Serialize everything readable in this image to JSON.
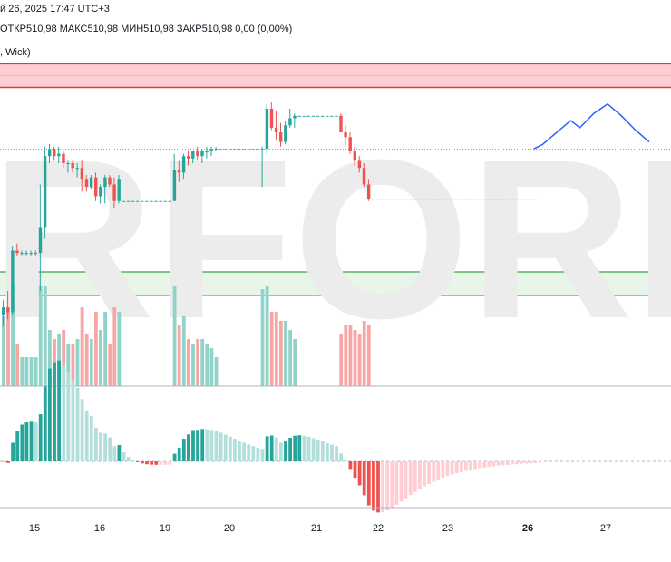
{
  "header": {
    "date_text": "й 26, 2025 17:47 UTC+3",
    "ohlc_text": "ОТКР510,98  МАКС510,98  МИН510,98  ЗАКР510,98  0,00 (0,00%)",
    "indicator_text": ", Wick)"
  },
  "watermark": "RFOREX.",
  "colors": {
    "up": "#26a69a",
    "down": "#ef5350",
    "vol_up": "#8fd3c9",
    "vol_down": "#f7a6a4",
    "osc_up_light": "#b2dfdb",
    "osc_down_light": "#ffcdd2",
    "forecast": "#2962ff",
    "resistance_fill": "#ffcdd2",
    "resistance_line": "#e53935",
    "support_fill": "#e8f5e9",
    "support_line": "#43a047"
  },
  "chart_data": {
    "type": "candlestick",
    "x_labels": [
      "15",
      "16",
      "19",
      "20",
      "21",
      "22",
      "23",
      "26",
      "27"
    ],
    "bold_labels": [
      "26"
    ],
    "candles": [
      [
        460,
        466,
        455,
        463
      ],
      [
        463,
        470,
        458,
        461
      ],
      [
        461,
        489,
        460,
        487
      ],
      [
        487,
        490,
        485,
        486
      ],
      [
        486,
        487,
        485,
        486
      ],
      [
        486,
        487,
        485,
        486
      ],
      [
        486,
        487,
        485,
        486
      ],
      [
        486,
        487,
        485,
        486
      ],
      [
        486,
        515,
        470,
        497
      ],
      [
        497,
        531,
        492,
        527
      ],
      [
        527,
        532,
        524,
        530
      ],
      [
        530,
        531,
        525,
        527
      ],
      [
        527,
        531,
        524,
        528
      ],
      [
        528,
        530,
        522,
        524
      ],
      [
        524,
        525,
        520,
        524
      ],
      [
        524,
        525,
        520,
        522
      ],
      [
        522,
        524,
        518,
        522
      ],
      [
        522,
        525,
        512,
        517
      ],
      [
        517,
        519,
        512,
        514
      ],
      [
        514,
        519,
        513,
        518
      ],
      [
        518,
        520,
        508,
        510
      ],
      [
        510,
        515,
        507,
        514
      ],
      [
        514,
        519,
        507,
        518
      ],
      [
        518,
        519,
        514,
        515
      ],
      [
        515,
        518,
        505,
        508
      ],
      [
        508,
        519,
        507,
        517
      ],
      [
        508,
        508,
        508,
        508
      ],
      [
        508,
        508,
        508,
        508
      ],
      [
        508,
        508,
        508,
        508
      ],
      [
        508,
        508,
        508,
        508
      ],
      [
        508,
        508,
        508,
        508
      ],
      [
        508,
        508,
        508,
        508
      ],
      [
        508,
        508,
        508,
        508
      ],
      [
        508,
        508,
        508,
        508
      ],
      [
        508,
        508,
        508,
        508
      ],
      [
        508,
        508,
        508,
        508
      ],
      [
        508,
        508,
        508,
        508
      ],
      [
        508,
        528,
        508,
        521
      ],
      [
        521,
        525,
        516,
        520
      ],
      [
        520,
        528,
        517,
        527
      ],
      [
        527,
        529,
        523,
        526
      ],
      [
        526,
        529,
        524,
        529
      ],
      [
        529,
        531,
        525,
        527
      ],
      [
        527,
        530,
        524,
        529
      ],
      [
        529,
        531,
        526,
        529
      ],
      [
        529,
        531,
        527,
        530
      ],
      [
        530,
        531,
        529,
        530
      ],
      [
        530,
        530,
        530,
        530
      ],
      [
        530,
        530,
        530,
        530
      ],
      [
        530,
        530,
        530,
        530
      ],
      [
        530,
        530,
        530,
        530
      ],
      [
        530,
        530,
        530,
        530
      ],
      [
        530,
        530,
        530,
        530
      ],
      [
        530,
        530,
        530,
        530
      ],
      [
        530,
        530,
        530,
        530
      ],
      [
        530,
        530,
        530,
        530
      ],
      [
        530,
        531,
        514,
        530
      ],
      [
        530,
        549,
        528,
        547
      ],
      [
        547,
        550,
        538,
        539
      ],
      [
        539,
        546,
        534,
        537
      ],
      [
        537,
        541,
        531,
        533
      ],
      [
        533,
        542,
        532,
        540
      ],
      [
        540,
        547,
        539,
        543
      ],
      [
        543,
        545,
        539,
        544
      ],
      [
        544,
        544,
        544,
        544
      ],
      [
        544,
        544,
        544,
        544
      ],
      [
        544,
        544,
        544,
        544
      ],
      [
        544,
        544,
        544,
        544
      ],
      [
        544,
        544,
        544,
        544
      ],
      [
        544,
        544,
        544,
        544
      ],
      [
        544,
        544,
        544,
        544
      ],
      [
        544,
        544,
        544,
        544
      ],
      [
        544,
        544,
        544,
        544
      ],
      [
        544,
        545,
        538,
        537
      ],
      [
        537,
        540,
        531,
        535
      ],
      [
        535,
        537,
        528,
        529
      ],
      [
        529,
        531,
        523,
        525
      ],
      [
        525,
        527,
        520,
        522
      ],
      [
        522,
        524,
        514,
        515
      ],
      [
        515,
        517,
        508,
        509
      ],
      [
        509,
        509,
        509,
        509
      ],
      [
        509,
        509,
        509,
        509
      ],
      [
        509,
        509,
        509,
        509
      ],
      [
        509,
        509,
        509,
        509
      ],
      [
        509,
        509,
        509,
        509
      ],
      [
        509,
        509,
        509,
        509
      ],
      [
        509,
        509,
        509,
        509
      ],
      [
        509,
        509,
        509,
        509
      ],
      [
        509,
        509,
        509,
        509
      ],
      [
        509,
        509,
        509,
        509
      ],
      [
        509,
        509,
        509,
        509
      ],
      [
        509,
        509,
        509,
        509
      ],
      [
        509,
        509,
        509,
        509
      ],
      [
        509,
        509,
        509,
        509
      ],
      [
        509,
        509,
        509,
        509
      ],
      [
        509,
        509,
        509,
        509
      ],
      [
        509,
        509,
        509,
        509
      ],
      [
        509,
        509,
        509,
        509
      ],
      [
        509,
        509,
        509,
        509
      ],
      [
        509,
        509,
        509,
        509
      ],
      [
        509,
        509,
        509,
        509
      ],
      [
        509,
        509,
        509,
        509
      ],
      [
        509,
        509,
        509,
        509
      ],
      [
        509,
        509,
        509,
        509
      ],
      [
        509,
        509,
        509,
        509
      ],
      [
        509,
        509,
        509,
        509
      ],
      [
        509,
        509,
        509,
        509
      ],
      [
        509,
        509,
        509,
        509
      ],
      [
        509,
        509,
        509,
        509
      ],
      [
        509,
        509,
        509,
        509
      ],
      [
        509,
        509,
        509,
        509
      ],
      [
        509,
        509,
        509,
        509
      ],
      [
        509,
        509,
        509,
        509
      ],
      [
        509,
        509,
        509,
        509
      ],
      [
        509,
        509,
        509,
        509
      ],
      [
        509,
        509,
        509,
        509
      ]
    ],
    "forecast_line": [
      [
        0,
        530
      ],
      [
        2,
        532
      ],
      [
        5,
        537
      ],
      [
        8,
        542
      ],
      [
        10,
        539
      ],
      [
        13,
        545
      ],
      [
        16,
        549
      ],
      [
        19,
        544
      ],
      [
        22,
        538
      ],
      [
        25,
        533
      ]
    ],
    "resistance_zone": [
      556,
      566
    ],
    "support_zone": [
      468,
      478
    ],
    "price_dotted_level": 530,
    "ylim": [
      455,
      570
    ]
  }
}
